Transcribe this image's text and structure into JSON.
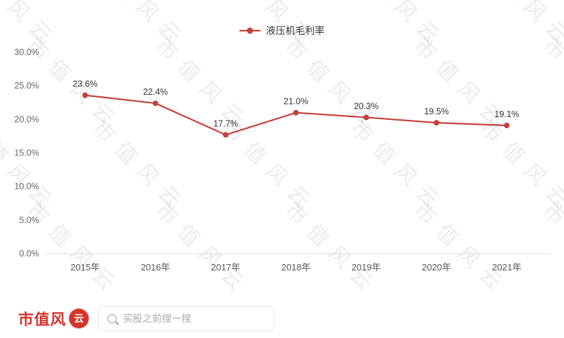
{
  "chart_data": {
    "type": "line",
    "title": "液压机毛利率",
    "categories": [
      "2015年",
      "2016年",
      "2017年",
      "2018年",
      "2019年",
      "2020年",
      "2021年"
    ],
    "values": [
      23.6,
      22.4,
      17.7,
      21.0,
      20.3,
      19.5,
      19.1
    ],
    "value_labels": [
      "23.6%",
      "22.4%",
      "17.7%",
      "21.0%",
      "20.3%",
      "19.5%",
      "19.1%"
    ],
    "ylim": [
      0,
      30
    ],
    "ytick_step": 5,
    "ytick_labels": [
      "0.0%",
      "5.0%",
      "10.0%",
      "15.0%",
      "20.0%",
      "25.0%",
      "30.0%"
    ],
    "legend": [
      "液压机毛利率"
    ],
    "legend_position": "top",
    "grid": false,
    "line_color": "#c5413c",
    "xlabel": "",
    "ylabel": ""
  },
  "watermark": {
    "text": "市值风云"
  },
  "footer": {
    "brand_prefix": "市值风",
    "brand_seal": "云",
    "search_placeholder": "买股之前搜一搜"
  },
  "colors": {
    "line": "#c5413c",
    "brand_red": "#d5342c",
    "axis": "#d8d8d8",
    "tick_text": "#666666",
    "value_text": "#333333"
  }
}
